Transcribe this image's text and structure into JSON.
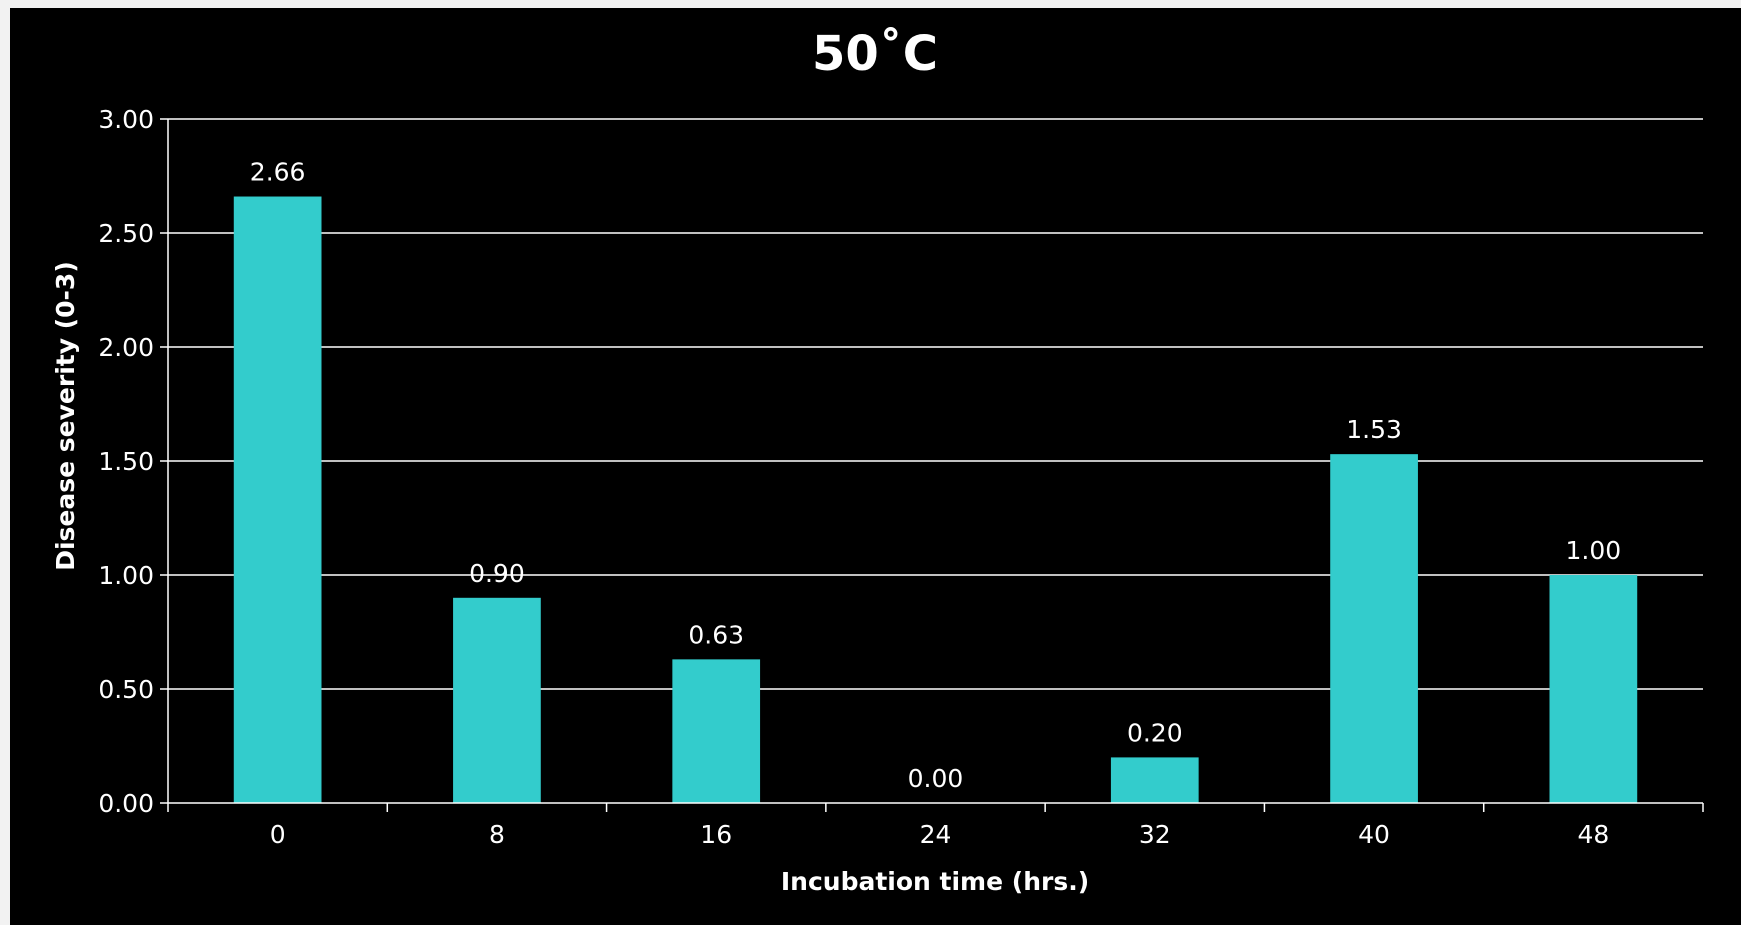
{
  "chart_data": {
    "type": "bar",
    "title": "50˚C",
    "xlabel": "Incubation time (hrs.)",
    "ylabel": "Disease severity (0-3)",
    "categories": [
      "0",
      "8",
      "16",
      "24",
      "32",
      "40",
      "48"
    ],
    "values": [
      2.66,
      0.9,
      0.63,
      0.0,
      0.2,
      1.53,
      1.0
    ],
    "value_labels": [
      "2.66",
      "0.90",
      "0.63",
      "0.00",
      "0.20",
      "1.53",
      "1.00"
    ],
    "ylim": [
      0,
      3
    ],
    "yticks": [
      0,
      0.5,
      1,
      1.5,
      2,
      2.5,
      3
    ],
    "ytick_labels": [
      "0.00",
      "0.50",
      "1.00",
      "1.50",
      "2.00",
      "2.50",
      "3.00"
    ],
    "grid": true,
    "legend": "none",
    "colors": {
      "background": "#000000",
      "bar": "#33CCCC",
      "gridline": "#FFFFFF",
      "text": "#FFFFFF"
    }
  }
}
